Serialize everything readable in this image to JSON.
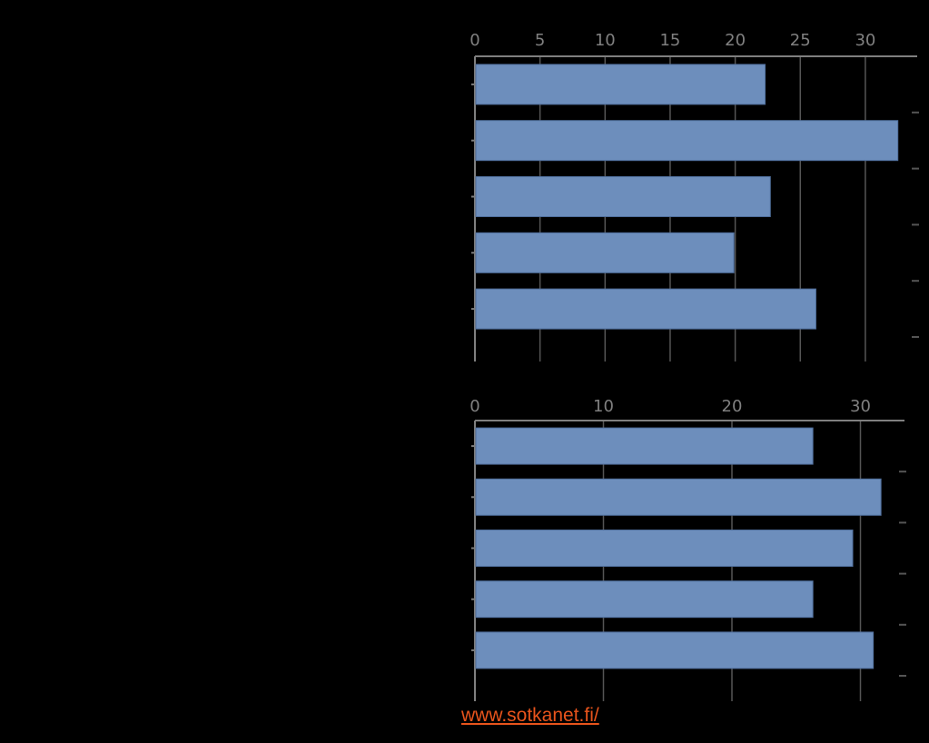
{
  "source_link": {
    "text": "www.sotkanet.fi/",
    "color": "#E8541C"
  },
  "colors": {
    "background": "#000000",
    "bar": "#6D8EBC",
    "bar_edge": "#4F6E9B",
    "grid": "#555555",
    "axis": "#7F7F7F",
    "tick_text": "#808080"
  },
  "chart_data": [
    {
      "type": "bar",
      "orientation": "horizontal",
      "title": "",
      "xlabel": "",
      "ylabel": "",
      "categories": [
        "",
        "",
        "",
        "",
        ""
      ],
      "values": [
        22.3,
        32.5,
        22.7,
        19.9,
        26.2
      ],
      "xlim": [
        0,
        34
      ],
      "xticks": [
        0,
        5,
        10,
        15,
        20,
        25,
        30
      ],
      "xaxis_position": "top",
      "grid": true
    },
    {
      "type": "bar",
      "orientation": "horizontal",
      "title": "",
      "xlabel": "",
      "ylabel": "",
      "categories": [
        "",
        "",
        "",
        "",
        ""
      ],
      "values": [
        26.3,
        31.6,
        29.4,
        26.3,
        31.0
      ],
      "xlim": [
        0,
        33.5
      ],
      "xticks": [
        0,
        10,
        20,
        30
      ],
      "xaxis_position": "top",
      "grid": true
    }
  ]
}
